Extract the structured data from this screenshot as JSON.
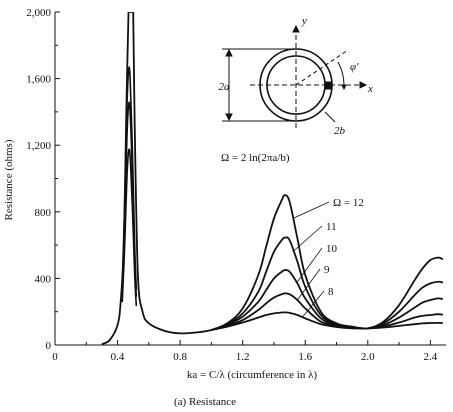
{
  "chart_data": {
    "type": "line",
    "xlabel": "ka = C/λ (circumference in λ)",
    "ylabel": "Resistance (ohms)",
    "caption": "(a)  Resistance",
    "xlim": [
      0,
      2.5
    ],
    "ylim": [
      0,
      2000
    ],
    "x_ticks": [
      "0",
      "0.4",
      "0.8",
      "1.2",
      "1.6",
      "2.0",
      "2.4"
    ],
    "x_tick_values": [
      0,
      0.4,
      0.8,
      1.2,
      1.6,
      2.0,
      2.4
    ],
    "y_ticks": [
      "0",
      "400",
      "800",
      "1,200",
      "1,600",
      "2,000"
    ],
    "y_tick_values": [
      0,
      400,
      800,
      1200,
      1600,
      2000
    ],
    "grid": false,
    "legend": "none",
    "series": [
      {
        "name": "Ω = 12",
        "label": "Ω = 12",
        "omega": 12,
        "resonance1_peak": 2000,
        "x": [
          0.3,
          0.35,
          0.4,
          0.42,
          0.44,
          0.455,
          0.47,
          0.48,
          0.49,
          0.5,
          0.51,
          0.53,
          0.56,
          0.6,
          0.7,
          0.8,
          0.9,
          1.0,
          1.1,
          1.2,
          1.3,
          1.35,
          1.4,
          1.45,
          1.47,
          1.5,
          1.55,
          1.6,
          1.7,
          1.8,
          1.9,
          2.0,
          2.1,
          2.2,
          2.3,
          2.35,
          2.4,
          2.45,
          2.48
        ],
        "y": [
          5,
          30,
          120,
          260,
          600,
          1350,
          2000,
          2000,
          2000,
          2000,
          1300,
          420,
          200,
          130,
          85,
          70,
          75,
          90,
          130,
          220,
          420,
          590,
          760,
          870,
          900,
          860,
          640,
          420,
          200,
          130,
          110,
          100,
          140,
          240,
          390,
          460,
          510,
          525,
          515
        ]
      },
      {
        "name": "11",
        "label": "11",
        "omega": 11,
        "resonance1_peak": 1660,
        "x": [
          1.0,
          1.1,
          1.2,
          1.3,
          1.35,
          1.4,
          1.45,
          1.47,
          1.5,
          1.55,
          1.6,
          1.7,
          1.8,
          1.9,
          2.0,
          2.1,
          2.2,
          2.3,
          2.35,
          2.4,
          2.45,
          2.48
        ],
        "y": [
          90,
          125,
          190,
          320,
          440,
          560,
          630,
          645,
          630,
          500,
          350,
          180,
          125,
          108,
          100,
          130,
          200,
          300,
          345,
          370,
          380,
          375
        ]
      },
      {
        "name": "10",
        "label": "10",
        "omega": 10,
        "resonance1_peak": 1450,
        "x": [
          1.0,
          1.1,
          1.2,
          1.3,
          1.35,
          1.4,
          1.45,
          1.47,
          1.5,
          1.55,
          1.6,
          1.7,
          1.8,
          1.9,
          2.0,
          2.1,
          2.2,
          2.3,
          2.35,
          2.4,
          2.45,
          2.48
        ],
        "y": [
          90,
          120,
          170,
          260,
          330,
          400,
          440,
          450,
          440,
          370,
          280,
          160,
          120,
          105,
          100,
          120,
          165,
          225,
          255,
          270,
          280,
          275
        ]
      },
      {
        "name": "9",
        "label": "9",
        "omega": 9,
        "resonance1_peak": 1170,
        "x": [
          1.0,
          1.1,
          1.2,
          1.3,
          1.35,
          1.4,
          1.45,
          1.47,
          1.5,
          1.55,
          1.6,
          1.7,
          1.8,
          1.9,
          2.0,
          2.1,
          2.2,
          2.3,
          2.35,
          2.4,
          2.45,
          2.48
        ],
        "y": [
          90,
          115,
          150,
          210,
          250,
          285,
          305,
          310,
          305,
          270,
          220,
          140,
          115,
          103,
          100,
          112,
          135,
          165,
          175,
          180,
          185,
          182
        ]
      },
      {
        "name": "8",
        "label": "8",
        "omega": 8,
        "resonance1_peak": 1170,
        "x": [
          1.0,
          1.1,
          1.2,
          1.3,
          1.35,
          1.4,
          1.45,
          1.47,
          1.5,
          1.55,
          1.6,
          1.7,
          1.8,
          1.9,
          2.0,
          2.1,
          2.2,
          2.3,
          2.35,
          2.4,
          2.45,
          2.48
        ],
        "y": [
          90,
          110,
          135,
          165,
          180,
          190,
          195,
          196,
          193,
          180,
          160,
          125,
          108,
          100,
          100,
          105,
          115,
          125,
          130,
          132,
          133,
          132
        ]
      }
    ],
    "inset": {
      "formula": "Ω = 2 ln(2πa/b)",
      "dim_a": "2a",
      "dim_b": "2b",
      "axis_x": "x",
      "axis_y": "y",
      "angle": "φ′"
    }
  }
}
